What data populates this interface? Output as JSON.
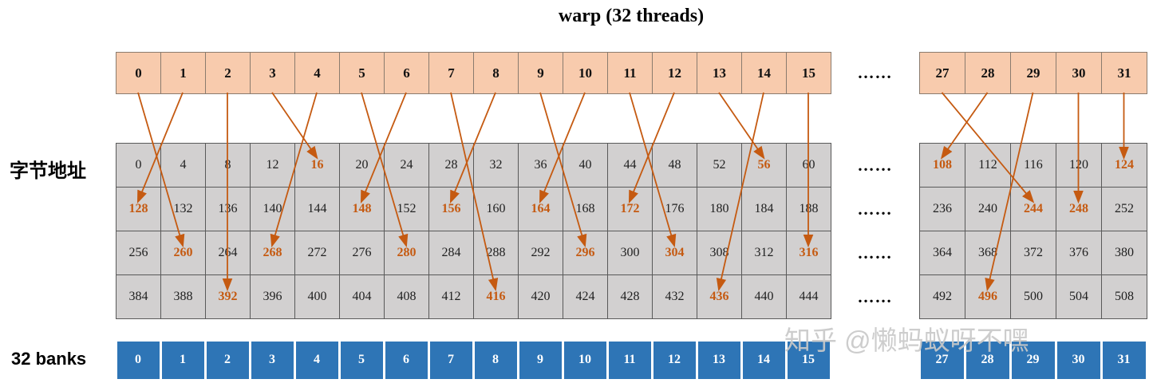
{
  "title": "warp (32 threads)",
  "labels": {
    "byte_address": "字节地址",
    "banks": "32 banks",
    "ellipsis": "……"
  },
  "watermark": "知乎 @懒蚂蚁呀不嘿",
  "colors": {
    "warp_fill": "#f8cbad",
    "grid_fill": "#d2d0d0",
    "grid_border": "#595959",
    "bank_fill": "#2e75b6",
    "highlight": "#c55a11",
    "arrow": "#c55a11"
  },
  "warp_threads": {
    "left": [
      "0",
      "1",
      "2",
      "3",
      "4",
      "5",
      "6",
      "7",
      "8",
      "9",
      "10",
      "11",
      "12",
      "13",
      "14",
      "15"
    ],
    "right": [
      "27",
      "28",
      "29",
      "30",
      "31"
    ]
  },
  "byte_grid": {
    "left_rows": [
      [
        "0",
        "4",
        "8",
        "12",
        "16",
        "20",
        "24",
        "28",
        "32",
        "36",
        "40",
        "44",
        "48",
        "52",
        "56",
        "60"
      ],
      [
        "128",
        "132",
        "136",
        "140",
        "144",
        "148",
        "152",
        "156",
        "160",
        "164",
        "168",
        "172",
        "176",
        "180",
        "184",
        "188"
      ],
      [
        "256",
        "260",
        "264",
        "268",
        "272",
        "276",
        "280",
        "284",
        "288",
        "292",
        "296",
        "300",
        "304",
        "308",
        "312",
        "316"
      ],
      [
        "384",
        "388",
        "392",
        "396",
        "400",
        "404",
        "408",
        "412",
        "416",
        "420",
        "424",
        "428",
        "432",
        "436",
        "440",
        "444"
      ]
    ],
    "right_rows": [
      [
        "108",
        "112",
        "116",
        "120",
        "124"
      ],
      [
        "236",
        "240",
        "244",
        "248",
        "252"
      ],
      [
        "364",
        "368",
        "372",
        "376",
        "380"
      ],
      [
        "492",
        "496",
        "500",
        "504",
        "508"
      ]
    ],
    "highlighted": [
      "16",
      "56",
      "108",
      "124",
      "128",
      "148",
      "156",
      "164",
      "172",
      "244",
      "248",
      "260",
      "268",
      "280",
      "296",
      "304",
      "316",
      "392",
      "416",
      "436",
      "496"
    ]
  },
  "bank_row": {
    "left": [
      "0",
      "1",
      "2",
      "3",
      "4",
      "5",
      "6",
      "7",
      "8",
      "9",
      "10",
      "11",
      "12",
      "13",
      "14",
      "15"
    ],
    "right": [
      "27",
      "28",
      "29",
      "30",
      "31"
    ]
  },
  "accesses": [
    {
      "thread": 0,
      "address": 260
    },
    {
      "thread": 1,
      "address": 128
    },
    {
      "thread": 2,
      "address": 392
    },
    {
      "thread": 3,
      "address": 16
    },
    {
      "thread": 4,
      "address": 268
    },
    {
      "thread": 5,
      "address": 280
    },
    {
      "thread": 6,
      "address": 148
    },
    {
      "thread": 7,
      "address": 416
    },
    {
      "thread": 8,
      "address": 156
    },
    {
      "thread": 9,
      "address": 296
    },
    {
      "thread": 10,
      "address": 164
    },
    {
      "thread": 11,
      "address": 304
    },
    {
      "thread": 12,
      "address": 172
    },
    {
      "thread": 13,
      "address": 56
    },
    {
      "thread": 14,
      "address": 436
    },
    {
      "thread": 15,
      "address": 316
    },
    {
      "thread": 27,
      "address": 244
    },
    {
      "thread": 28,
      "address": 108
    },
    {
      "thread": 29,
      "address": 496
    },
    {
      "thread": 30,
      "address": 248
    },
    {
      "thread": 31,
      "address": 124
    }
  ]
}
